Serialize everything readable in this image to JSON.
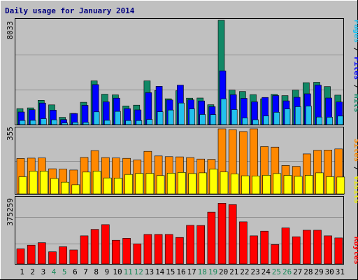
{
  "title": "Daily usage for January 2014",
  "colors": {
    "background": "#c0c0c0",
    "title": "#000080",
    "hits": "#118866",
    "files": "#0000ff",
    "pages": "#22c0ee",
    "visits": "#ff8800",
    "sites": "#ffff00",
    "kbytes": "#ff0000",
    "weekend_label": "#1a8a5a",
    "weekday_label": "#000000"
  },
  "legend": {
    "pages": "Pages",
    "files": "Files",
    "hits": "Hits",
    "sites": "Sites",
    "visits": "Visits",
    "kbytes": "KBytes",
    "separator": " / "
  },
  "chart_data": [
    {
      "type": "bar",
      "panel": "hits-files-pages",
      "ymax_label": "8033",
      "ylim": [
        0,
        8033
      ],
      "categories": [
        "1",
        "2",
        "3",
        "4",
        "5",
        "6",
        "7",
        "8",
        "9",
        "10",
        "11",
        "12",
        "13",
        "14",
        "15",
        "16",
        "17",
        "18",
        "19",
        "20",
        "21",
        "22",
        "23",
        "24",
        "25",
        "26",
        "27",
        "28",
        "29",
        "30",
        "31"
      ],
      "weekend_days": [
        4,
        5,
        11,
        12,
        18,
        19,
        25,
        26
      ],
      "series": [
        {
          "name": "Hits",
          "values": [
            1230,
            1290,
            1870,
            1520,
            560,
            860,
            1720,
            3370,
            2340,
            2290,
            1440,
            1500,
            3370,
            2620,
            1990,
            2610,
            2040,
            2050,
            1530,
            8033,
            2660,
            2550,
            2310,
            1990,
            2330,
            2230,
            2660,
            3230,
            3260,
            2930,
            2270
          ]
        },
        {
          "name": "Files",
          "values": [
            970,
            1150,
            1660,
            1110,
            390,
            850,
            1480,
            3080,
            1750,
            2040,
            1230,
            1130,
            2460,
            2950,
            1900,
            3040,
            1910,
            1820,
            1380,
            4140,
            2300,
            2020,
            1750,
            2090,
            2240,
            1830,
            2100,
            2370,
            3040,
            2050,
            1740
          ]
        },
        {
          "name": "Pages",
          "values": [
            320,
            330,
            460,
            370,
            130,
            180,
            170,
            980,
            330,
            1020,
            310,
            310,
            400,
            990,
            1120,
            1660,
            1210,
            780,
            770,
            1990,
            1160,
            510,
            380,
            670,
            950,
            1200,
            1380,
            1430,
            580,
            570,
            660
          ]
        }
      ]
    },
    {
      "type": "bar",
      "panel": "visits-sites",
      "ymax_label": "355",
      "ylim": [
        0,
        355
      ],
      "categories": [
        "1",
        "2",
        "3",
        "4",
        "5",
        "6",
        "7",
        "8",
        "9",
        "10",
        "11",
        "12",
        "13",
        "14",
        "15",
        "16",
        "17",
        "18",
        "19",
        "20",
        "21",
        "22",
        "23",
        "24",
        "25",
        "26",
        "27",
        "28",
        "29",
        "30",
        "31"
      ],
      "series": [
        {
          "name": "Visits",
          "values": [
            193,
            195,
            196,
            137,
            135,
            130,
            199,
            236,
            198,
            196,
            194,
            185,
            232,
            207,
            203,
            202,
            198,
            190,
            188,
            355,
            350,
            340,
            355,
            258,
            255,
            155,
            150,
            218,
            238,
            239,
            245
          ]
        },
        {
          "name": "Sites",
          "values": [
            94,
            124,
            124,
            84,
            64,
            50,
            119,
            124,
            87,
            86,
            106,
            112,
            112,
            100,
            113,
            117,
            111,
            115,
            135,
            120,
            109,
            99,
            98,
            102,
            111,
            101,
            96,
            101,
            115,
            94,
            92
          ]
        }
      ]
    },
    {
      "type": "bar",
      "panel": "kbytes",
      "ymax_label": "375259",
      "ylim": [
        0,
        375259
      ],
      "categories": [
        "1",
        "2",
        "3",
        "4",
        "5",
        "6",
        "7",
        "8",
        "9",
        "10",
        "11",
        "12",
        "13",
        "14",
        "15",
        "16",
        "17",
        "18",
        "19",
        "20",
        "21",
        "22",
        "23",
        "24",
        "25",
        "26",
        "27",
        "28",
        "29",
        "30",
        "31"
      ],
      "series": [
        {
          "name": "KBytes",
          "values": [
            86000,
            107000,
            121000,
            69000,
            98000,
            80000,
            160000,
            197000,
            224000,
            135000,
            146000,
            114000,
            168000,
            168000,
            168000,
            151000,
            220000,
            219000,
            295000,
            346000,
            338000,
            240000,
            160000,
            187000,
            110000,
            205000,
            155000,
            192000,
            192000,
            160000,
            148000
          ]
        }
      ]
    }
  ]
}
